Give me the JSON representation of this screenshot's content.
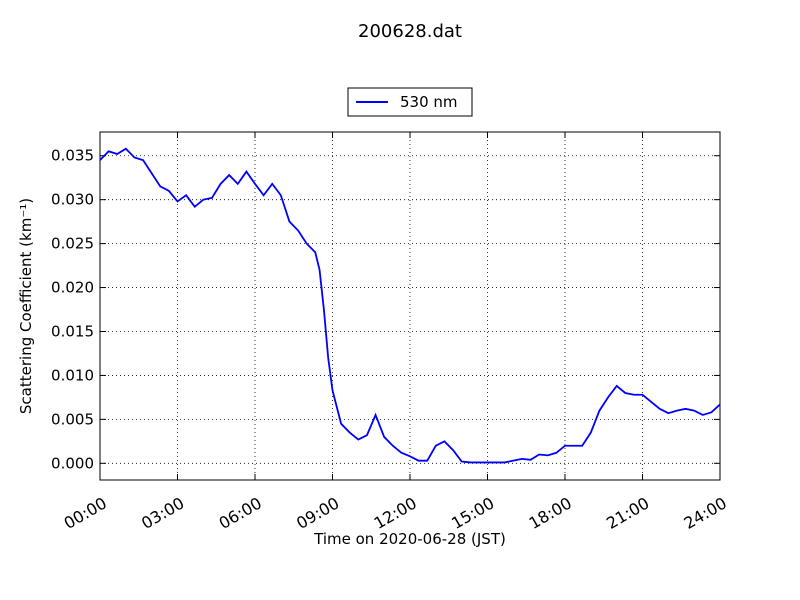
{
  "chart_data": {
    "type": "line",
    "title": "200628.dat",
    "x_label": "Time on 2020-06-28 (JST)",
    "y_label": "Scattering Coefficient (km⁻¹)",
    "x": [
      "00:00",
      "00:20",
      "00:40",
      "01:00",
      "01:20",
      "01:40",
      "02:00",
      "02:20",
      "02:40",
      "03:00",
      "03:20",
      "03:40",
      "04:00",
      "04:20",
      "04:40",
      "05:00",
      "05:20",
      "05:40",
      "06:00",
      "06:20",
      "06:40",
      "07:00",
      "07:20",
      "07:40",
      "08:00",
      "08:20",
      "08:30",
      "08:40",
      "08:50",
      "09:00",
      "09:20",
      "09:40",
      "10:00",
      "10:20",
      "10:40",
      "11:00",
      "11:20",
      "11:40",
      "12:00",
      "12:20",
      "12:40",
      "13:00",
      "13:20",
      "13:40",
      "14:00",
      "14:20",
      "14:40",
      "15:00",
      "15:20",
      "15:40",
      "16:00",
      "16:20",
      "16:40",
      "17:00",
      "17:20",
      "17:40",
      "18:00",
      "18:20",
      "18:40",
      "19:00",
      "19:20",
      "19:40",
      "20:00",
      "20:20",
      "20:40",
      "21:00",
      "21:20",
      "21:40",
      "22:00",
      "22:20",
      "22:40",
      "23:00",
      "23:20",
      "23:40",
      "24:00"
    ],
    "series": [
      {
        "name": "530 nm",
        "color": "#0000ff",
        "values": [
          0.0345,
          0.0355,
          0.0352,
          0.0358,
          0.0348,
          0.0345,
          0.033,
          0.0315,
          0.031,
          0.0298,
          0.0305,
          0.0292,
          0.03,
          0.0302,
          0.0318,
          0.0328,
          0.0318,
          0.0332,
          0.0318,
          0.0305,
          0.0318,
          0.0305,
          0.0275,
          0.0265,
          0.025,
          0.024,
          0.022,
          0.0175,
          0.012,
          0.0083,
          0.0045,
          0.0035,
          0.0027,
          0.0032,
          0.0055,
          0.003,
          0.002,
          0.0012,
          0.0008,
          0.0003,
          0.0003,
          0.002,
          0.0025,
          0.0015,
          0.0002,
          0.0001,
          0.0001,
          0.0001,
          0.0001,
          0.0001,
          0.0003,
          0.0005,
          0.0004,
          0.001,
          0.0009,
          0.0012,
          0.002,
          0.002,
          0.002,
          0.0035,
          0.006,
          0.0075,
          0.0088,
          0.008,
          0.0078,
          0.0078,
          0.007,
          0.0062,
          0.0057,
          0.006,
          0.0062,
          0.006,
          0.0055,
          0.0058,
          0.0067
        ]
      }
    ],
    "xlim": [
      "00:00",
      "24:00"
    ],
    "xticks": [
      "00:00",
      "03:00",
      "06:00",
      "09:00",
      "12:00",
      "15:00",
      "18:00",
      "21:00",
      "24:00"
    ],
    "ylim": [
      -0.0019,
      0.0377
    ],
    "yticks": [
      {
        "value": 0,
        "label": "0.000"
      },
      {
        "value": 0.005,
        "label": "0.005"
      },
      {
        "value": 0.01,
        "label": "0.010"
      },
      {
        "value": 0.015,
        "label": "0.015"
      },
      {
        "value": 0.02,
        "label": "0.020"
      },
      {
        "value": 0.025,
        "label": "0.025"
      },
      {
        "value": 0.03,
        "label": "0.030"
      },
      {
        "value": 0.035,
        "label": "0.035"
      }
    ],
    "grid": true,
    "legend": "top"
  }
}
